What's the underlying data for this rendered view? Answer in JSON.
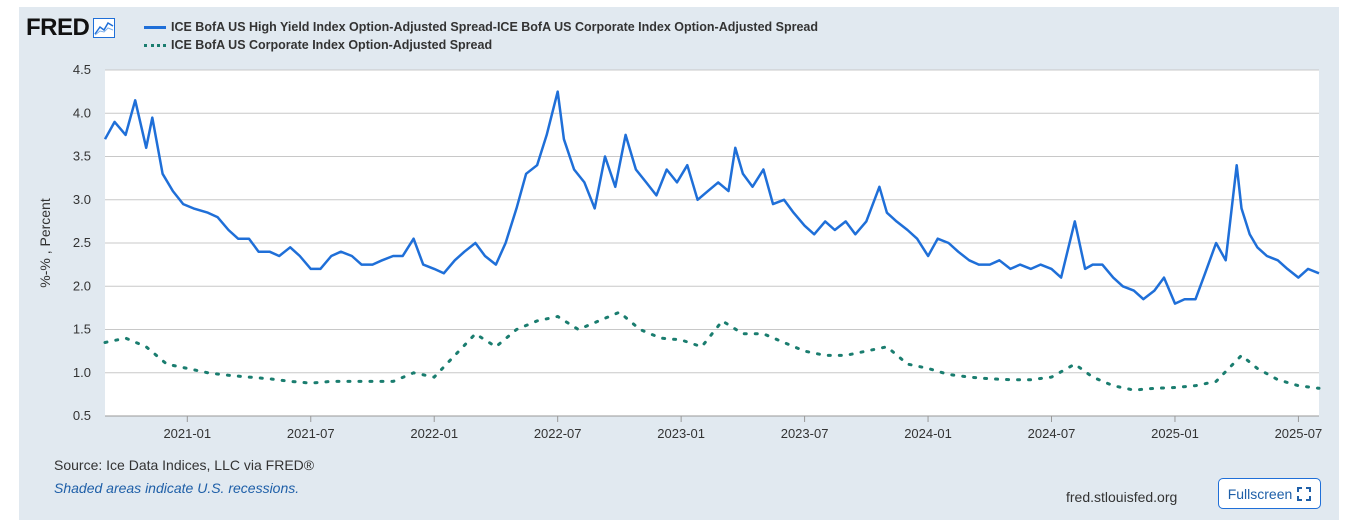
{
  "brand": {
    "logo_text": "FRED"
  },
  "footer": {
    "source": "Source: Ice Data Indices, LLC via FRED®",
    "recessions": "Shaded areas indicate U.S. recessions.",
    "site": "fred.stlouisfed.org",
    "fullscreen_label": "Fullscreen"
  },
  "colors": {
    "series1": "#1f6fd8",
    "series2": "#1a7d6f",
    "grid": "#c8c8c8",
    "background": "#e1e9f0"
  },
  "chart_data": {
    "type": "line",
    "title": "",
    "xlabel": "",
    "ylabel": "%-% , Percent",
    "ylim": [
      0.5,
      4.5
    ],
    "yticks": [
      "0.5",
      "1.0",
      "1.5",
      "2.0",
      "2.5",
      "3.0",
      "3.5",
      "4.0",
      "4.5"
    ],
    "xlim": [
      "2020-09",
      "2025-08"
    ],
    "xticks": [
      "2021-01",
      "2021-07",
      "2022-01",
      "2022-07",
      "2023-01",
      "2023-07",
      "2024-01",
      "2024-07",
      "2025-01",
      "2025-07"
    ],
    "grid": true,
    "legend_position": "top-left",
    "series": [
      {
        "name": "ICE BofA US High Yield Index Option-Adjusted Spread-ICE BofA US Corporate Index Option-Adjusted Spread",
        "style": "solid",
        "x": [
          "2020-09-01",
          "2020-09-15",
          "2020-10-01",
          "2020-10-15",
          "2020-11-01",
          "2020-11-10",
          "2020-11-25",
          "2020-12-10",
          "2020-12-25",
          "2021-01-10",
          "2021-02-01",
          "2021-02-15",
          "2021-03-01",
          "2021-03-15",
          "2021-04-01",
          "2021-04-15",
          "2021-05-01",
          "2021-05-15",
          "2021-06-01",
          "2021-06-15",
          "2021-07-01",
          "2021-07-15",
          "2021-08-01",
          "2021-08-15",
          "2021-09-01",
          "2021-09-15",
          "2021-10-01",
          "2021-10-15",
          "2021-11-01",
          "2021-11-15",
          "2021-12-01",
          "2021-12-15",
          "2022-01-01",
          "2022-01-15",
          "2022-02-01",
          "2022-02-15",
          "2022-03-01",
          "2022-03-15",
          "2022-04-01",
          "2022-04-15",
          "2022-05-01",
          "2022-05-15",
          "2022-06-01",
          "2022-06-15",
          "2022-07-01",
          "2022-07-10",
          "2022-07-25",
          "2022-08-10",
          "2022-08-25",
          "2022-09-10",
          "2022-09-25",
          "2022-10-10",
          "2022-10-25",
          "2022-11-10",
          "2022-11-25",
          "2022-12-10",
          "2022-12-25",
          "2023-01-10",
          "2023-01-25",
          "2023-02-10",
          "2023-02-25",
          "2023-03-10",
          "2023-03-20",
          "2023-04-01",
          "2023-04-15",
          "2023-05-01",
          "2023-05-15",
          "2023-06-01",
          "2023-06-15",
          "2023-07-01",
          "2023-07-15",
          "2023-08-01",
          "2023-08-15",
          "2023-09-01",
          "2023-09-15",
          "2023-10-01",
          "2023-10-20",
          "2023-11-01",
          "2023-11-15",
          "2023-12-01",
          "2023-12-15",
          "2024-01-01",
          "2024-01-15",
          "2024-02-01",
          "2024-02-15",
          "2024-03-01",
          "2024-03-15",
          "2024-04-01",
          "2024-04-15",
          "2024-05-01",
          "2024-05-15",
          "2024-06-01",
          "2024-06-15",
          "2024-07-01",
          "2024-07-15",
          "2024-08-05",
          "2024-08-20",
          "2024-09-01",
          "2024-09-15",
          "2024-10-01",
          "2024-10-15",
          "2024-11-01",
          "2024-11-15",
          "2024-12-01",
          "2024-12-15",
          "2025-01-01",
          "2025-01-15",
          "2025-02-01",
          "2025-02-15",
          "2025-03-01",
          "2025-03-15",
          "2025-04-01",
          "2025-04-08",
          "2025-04-20",
          "2025-05-01",
          "2025-05-15",
          "2025-06-01",
          "2025-06-15",
          "2025-07-01",
          "2025-07-15",
          "2025-08-01"
        ],
        "values": [
          3.7,
          3.9,
          3.75,
          4.15,
          3.6,
          3.95,
          3.3,
          3.1,
          2.95,
          2.9,
          2.85,
          2.8,
          2.65,
          2.55,
          2.55,
          2.4,
          2.4,
          2.35,
          2.45,
          2.35,
          2.2,
          2.2,
          2.35,
          2.4,
          2.35,
          2.25,
          2.25,
          2.3,
          2.35,
          2.35,
          2.55,
          2.25,
          2.2,
          2.15,
          2.3,
          2.4,
          2.5,
          2.35,
          2.25,
          2.5,
          2.9,
          3.3,
          3.4,
          3.75,
          4.25,
          3.7,
          3.35,
          3.2,
          2.9,
          3.5,
          3.15,
          3.75,
          3.35,
          3.2,
          3.05,
          3.35,
          3.2,
          3.4,
          3.0,
          3.1,
          3.2,
          3.1,
          3.6,
          3.3,
          3.15,
          3.35,
          2.95,
          3.0,
          2.85,
          2.7,
          2.6,
          2.75,
          2.65,
          2.75,
          2.6,
          2.75,
          3.15,
          2.85,
          2.75,
          2.65,
          2.55,
          2.35,
          2.55,
          2.5,
          2.4,
          2.3,
          2.25,
          2.25,
          2.3,
          2.2,
          2.25,
          2.2,
          2.25,
          2.2,
          2.1,
          2.75,
          2.2,
          2.25,
          2.25,
          2.1,
          2.0,
          1.95,
          1.85,
          1.95,
          2.1,
          1.8,
          1.85,
          1.85,
          2.15,
          2.5,
          2.3,
          3.4,
          2.9,
          2.6,
          2.45,
          2.35,
          2.3,
          2.2,
          2.1,
          2.2,
          2.15
        ]
      },
      {
        "name": "ICE BofA US Corporate Index Option-Adjusted Spread",
        "style": "dotted",
        "x": [
          "2020-09-01",
          "2020-10-01",
          "2020-11-01",
          "2020-12-01",
          "2021-01-01",
          "2021-02-01",
          "2021-03-01",
          "2021-04-01",
          "2021-05-01",
          "2021-06-01",
          "2021-07-01",
          "2021-08-01",
          "2021-09-01",
          "2021-10-01",
          "2021-11-01",
          "2021-12-01",
          "2022-01-01",
          "2022-02-01",
          "2022-03-01",
          "2022-04-01",
          "2022-05-01",
          "2022-06-01",
          "2022-07-01",
          "2022-08-01",
          "2022-09-01",
          "2022-10-01",
          "2022-11-01",
          "2022-12-01",
          "2023-01-01",
          "2023-02-01",
          "2023-03-01",
          "2023-04-01",
          "2023-05-01",
          "2023-06-01",
          "2023-07-01",
          "2023-08-01",
          "2023-09-01",
          "2023-10-01",
          "2023-11-01",
          "2023-12-01",
          "2024-01-01",
          "2024-02-01",
          "2024-03-01",
          "2024-04-01",
          "2024-05-01",
          "2024-06-01",
          "2024-07-01",
          "2024-08-05",
          "2024-09-01",
          "2024-10-01",
          "2024-11-01",
          "2024-12-01",
          "2025-01-01",
          "2025-02-01",
          "2025-03-01",
          "2025-04-08",
          "2025-05-01",
          "2025-06-01",
          "2025-07-01",
          "2025-08-01"
        ],
        "values": [
          1.35,
          1.4,
          1.3,
          1.1,
          1.05,
          1.0,
          0.97,
          0.95,
          0.93,
          0.9,
          0.88,
          0.9,
          0.9,
          0.9,
          0.9,
          1.0,
          0.95,
          1.2,
          1.45,
          1.3,
          1.5,
          1.6,
          1.65,
          1.5,
          1.6,
          1.7,
          1.5,
          1.4,
          1.38,
          1.3,
          1.6,
          1.45,
          1.45,
          1.35,
          1.25,
          1.2,
          1.2,
          1.25,
          1.3,
          1.1,
          1.05,
          0.98,
          0.95,
          0.93,
          0.92,
          0.92,
          0.95,
          1.1,
          0.95,
          0.85,
          0.8,
          0.82,
          0.83,
          0.85,
          0.9,
          1.2,
          1.05,
          0.92,
          0.85,
          0.82
        ]
      }
    ]
  }
}
